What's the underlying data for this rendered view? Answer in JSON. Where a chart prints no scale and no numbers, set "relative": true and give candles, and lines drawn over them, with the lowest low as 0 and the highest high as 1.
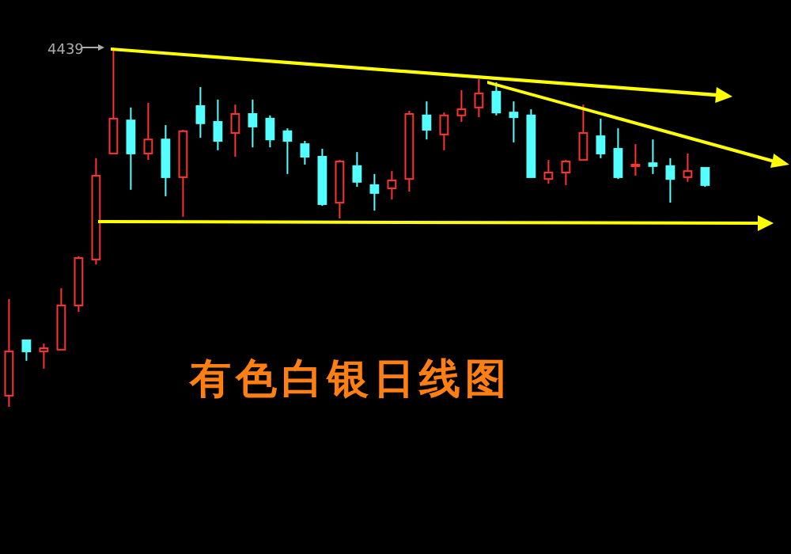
{
  "chart_data": {
    "type": "candlestick",
    "title": "有色白银日线图",
    "relative": true,
    "categories": [
      null,
      null,
      null,
      null,
      null,
      null,
      null,
      null,
      null,
      null,
      null,
      null,
      null,
      null,
      null,
      null,
      null,
      null,
      null,
      null,
      null,
      null,
      null,
      null,
      null,
      null,
      null,
      null,
      null,
      null,
      null,
      null,
      null,
      null,
      null,
      null,
      null,
      null,
      null,
      null,
      null
    ],
    "ohlc": [
      [
        0.031,
        0.3,
        0,
        0.154
      ],
      [
        0.185,
        0.185,
        0.128,
        0.154
      ],
      [
        0.154,
        0.176,
        0.106,
        0.163
      ],
      [
        0.159,
        0.33,
        0.159,
        0.282
      ],
      [
        0.282,
        0.419,
        0.264,
        0.414
      ],
      [
        0.41,
        0.692,
        0.396,
        0.643
      ],
      [
        0.705,
        1,
        0.705,
        0.802
      ],
      [
        0.797,
        0.833,
        0.604,
        0.705
      ],
      [
        0.705,
        0.846,
        0.687,
        0.744
      ],
      [
        0.744,
        0.784,
        0.586,
        0.639
      ],
      [
        0.639,
        0.771,
        0.529,
        0.767
      ],
      [
        0.837,
        0.89,
        0.749,
        0.789
      ],
      [
        0.793,
        0.855,
        0.714,
        0.74
      ],
      [
        0.762,
        0.841,
        0.696,
        0.815
      ],
      [
        0.815,
        0.855,
        0.722,
        0.78
      ],
      [
        0.802,
        0.811,
        0.722,
        0.744
      ],
      [
        0.767,
        0.775,
        0.648,
        0.74
      ],
      [
        0.731,
        0.74,
        0.674,
        0.696
      ],
      [
        0.696,
        0.718,
        0.559,
        0.564
      ],
      [
        0.568,
        0.687,
        0.524,
        0.683
      ],
      [
        0.67,
        0.709,
        0.612,
        0.626
      ],
      [
        0.617,
        0.648,
        0.546,
        0.595
      ],
      [
        0.608,
        0.656,
        0.577,
        0.63
      ],
      [
        0.634,
        0.824,
        0.599,
        0.815
      ],
      [
        0.811,
        0.85,
        0.744,
        0.771
      ],
      [
        0.758,
        0.819,
        0.714,
        0.811
      ],
      [
        0.811,
        0.881,
        0.793,
        0.828
      ],
      [
        0.833,
        0.912,
        0.806,
        0.872
      ],
      [
        0.877,
        0.903,
        0.811,
        0.819
      ],
      [
        0.819,
        0.85,
        0.736,
        0.806
      ],
      [
        0.811,
        0.828,
        0.639,
        0.639
      ],
      [
        0.634,
        0.687,
        0.621,
        0.652
      ],
      [
        0.652,
        0.687,
        0.617,
        0.683
      ],
      [
        0.687,
        0.841,
        0.687,
        0.762
      ],
      [
        0.753,
        0.802,
        0.692,
        0.705
      ],
      [
        0.718,
        0.775,
        0.634,
        0.639
      ],
      [
        0.67,
        0.731,
        0.643,
        0.674
      ],
      [
        0.678,
        0.744,
        0.648,
        0.67
      ],
      [
        0.67,
        0.692,
        0.568,
        0.634
      ],
      [
        0.639,
        0.705,
        0.626,
        0.656
      ],
      [
        0.665,
        0.665,
        0.612,
        0.617
      ]
    ],
    "annotations": [
      "4439"
    ]
  }
}
